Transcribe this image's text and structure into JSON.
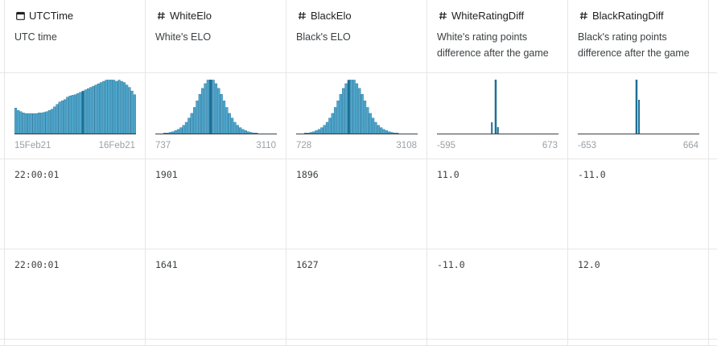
{
  "columns": [
    {
      "key": "utc",
      "type_icon": "calendar-icon",
      "name": "UTCTime",
      "description": "UTC time",
      "range_min": "15Feb21",
      "range_max": "16Feb21",
      "hist": [
        42,
        38,
        36,
        34,
        33,
        33,
        33,
        33,
        33,
        34,
        34,
        35,
        36,
        38,
        40,
        44,
        48,
        52,
        54,
        56,
        60,
        62,
        63,
        64,
        66,
        68,
        70,
        72,
        74,
        76,
        78,
        80,
        82,
        84,
        86,
        88,
        90,
        90,
        88,
        86,
        88,
        86,
        84,
        80,
        76,
        70,
        64
      ],
      "highlight": [
        26
      ]
    },
    {
      "key": "white_elo",
      "type_icon": "hash-icon",
      "name": "WhiteElo",
      "description": "White's ELO",
      "range_min": "737",
      "range_max": "3110",
      "hist": [
        0,
        0,
        0,
        1,
        1,
        2,
        3,
        5,
        7,
        10,
        14,
        19,
        26,
        34,
        44,
        55,
        66,
        76,
        84,
        90,
        92,
        90,
        84,
        76,
        66,
        55,
        44,
        34,
        26,
        19,
        14,
        10,
        7,
        5,
        3,
        2,
        1,
        1,
        0,
        0,
        0,
        0,
        0,
        0,
        0
      ],
      "highlight": [
        20
      ]
    },
    {
      "key": "black_elo",
      "type_icon": "hash-icon",
      "name": "BlackElo",
      "description": "Black's ELO",
      "range_min": "728",
      "range_max": "3108",
      "hist": [
        0,
        0,
        0,
        1,
        1,
        2,
        3,
        5,
        7,
        10,
        14,
        19,
        26,
        34,
        44,
        55,
        66,
        76,
        84,
        90,
        92,
        90,
        84,
        76,
        66,
        55,
        44,
        34,
        26,
        19,
        14,
        10,
        7,
        5,
        3,
        2,
        1,
        1,
        0,
        0,
        0,
        0,
        0,
        0,
        0
      ],
      "highlight": [
        19
      ]
    },
    {
      "key": "white_diff",
      "type_icon": "hash-icon",
      "name": "WhiteRatingDiff",
      "description": "White's rating points difference after the game",
      "range_min": "-595",
      "range_max": "673",
      "hist": [
        0,
        0,
        0,
        0,
        0,
        0,
        0,
        0,
        0,
        0,
        0,
        0,
        0,
        0,
        0,
        0,
        0,
        0,
        0,
        0,
        0,
        0,
        0,
        0,
        0,
        0,
        0,
        0,
        0,
        0,
        0,
        0,
        0,
        0,
        0,
        0,
        0,
        0,
        0,
        0,
        0,
        0,
        0,
        0,
        0,
        0,
        0,
        0,
        0,
        0,
        0,
        0,
        0,
        0,
        0,
        0,
        0,
        0,
        0,
        0,
        0,
        0,
        0,
        0,
        0,
        0,
        0,
        0,
        0,
        0,
        0,
        0,
        0,
        0,
        0,
        0,
        0,
        0,
        0,
        0,
        0,
        0,
        0,
        0,
        0,
        0,
        0,
        0,
        0,
        0,
        0,
        0,
        0,
        0,
        0,
        0,
        0,
        0,
        0,
        0,
        0,
        0,
        0,
        0,
        0,
        0,
        0,
        0,
        0,
        0,
        0,
        0,
        0,
        0,
        0,
        0,
        0,
        0,
        0,
        0,
        0,
        0,
        0,
        0,
        0,
        0,
        0,
        0,
        0,
        0,
        0,
        0,
        0,
        0,
        0,
        0,
        0,
        0,
        0,
        0,
        0,
        0,
        0,
        0,
        0,
        0,
        0,
        0,
        0,
        0
      ],
      "spikes": [
        {
          "at": 0.445,
          "h": 14,
          "w": 2
        },
        {
          "at": 0.475,
          "h": 68,
          "w": 2.5
        },
        {
          "at": 0.495,
          "h": 8,
          "w": 2
        }
      ]
    },
    {
      "key": "black_diff",
      "type_icon": "hash-icon",
      "name": "BlackRatingDiff",
      "description": "Black's rating points difference after the game",
      "range_min": "-653",
      "range_max": "664",
      "hist": [],
      "spikes": [
        {
          "at": 0.475,
          "h": 68,
          "w": 2.5
        },
        {
          "at": 0.497,
          "h": 42,
          "w": 2
        }
      ]
    }
  ],
  "rows": [
    {
      "utc": "22:00:01",
      "white_elo": "1901",
      "black_elo": "1896",
      "white_diff": "11.0",
      "black_diff": "-11.0"
    },
    {
      "utc": "22:00:01",
      "white_elo": "1641",
      "black_elo": "1627",
      "white_diff": "-11.0",
      "black_diff": "12.0"
    }
  ],
  "colors": {
    "bar": "#4fa6cc",
    "bar_highlight": "#1d6f95",
    "axis": "#3c4043"
  }
}
